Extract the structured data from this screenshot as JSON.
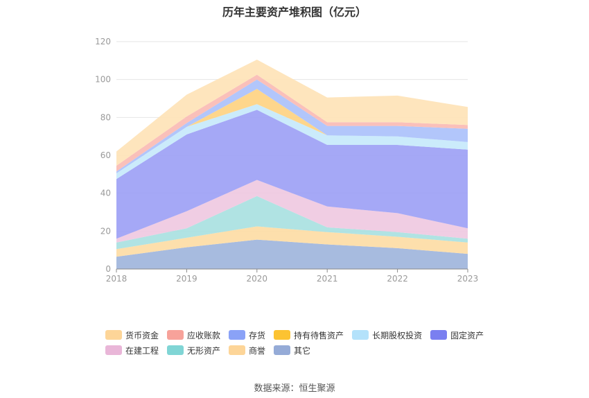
{
  "title": "历年主要资产堆积图（亿元）",
  "source": "数据来源：恒生聚源",
  "chart_data": {
    "type": "area",
    "stacked": true,
    "title": "历年主要资产堆积图（亿元）",
    "categories": [
      "2018",
      "2019",
      "2020",
      "2021",
      "2022",
      "2023"
    ],
    "ylim": [
      0,
      120
    ],
    "yticks": [
      "0",
      "20",
      "40",
      "60",
      "80",
      "100",
      "120"
    ],
    "grid": true,
    "legend_position": "bottom",
    "series": [
      {
        "name": "其它",
        "color": "#9db4dc",
        "values": [
          6.5,
          11.5,
          15.5,
          13,
          11,
          8
        ]
      },
      {
        "name": "商誉",
        "color": "#fddba3",
        "values": [
          4,
          5,
          7,
          6.5,
          6,
          6
        ]
      },
      {
        "name": "无形资产",
        "color": "#a7e0e0",
        "values": [
          3.5,
          5,
          16,
          2.5,
          2.5,
          2
        ]
      },
      {
        "name": "在建工程",
        "color": "#eec8e0",
        "values": [
          2,
          9,
          8.5,
          11,
          10,
          5.5
        ]
      },
      {
        "name": "固定资产",
        "color": "#9b9ff5",
        "values": [
          31.5,
          40.5,
          37,
          32.5,
          36,
          41.5
        ]
      },
      {
        "name": "长期股权投资",
        "color": "#c5e9fb",
        "values": [
          3,
          4,
          3,
          5,
          4.5,
          4
        ]
      },
      {
        "name": "持有待售资产",
        "color": "#fed27f",
        "values": [
          0,
          0,
          8,
          0,
          0,
          0
        ]
      },
      {
        "name": "存货",
        "color": "#aac0fb",
        "values": [
          1,
          2,
          5,
          5,
          5.5,
          7
        ]
      },
      {
        "name": "应收账款",
        "color": "#f9b9b2",
        "values": [
          3,
          3.5,
          2.5,
          2,
          2,
          2
        ]
      },
      {
        "name": "货币资金",
        "color": "#fee2b6",
        "values": [
          7.5,
          11.5,
          8,
          13,
          14,
          9.5
        ]
      }
    ],
    "legend_order": [
      "货币资金",
      "应收账款",
      "存货",
      "持有待售资产",
      "长期股权投资",
      "固定资产",
      "在建工程",
      "无形资产",
      "商誉",
      "其它"
    ],
    "legend_colors": {
      "货币资金": "#fdd598",
      "应收账款": "#f7a29a",
      "存货": "#8aa2f7",
      "持有待售资产": "#fcc332",
      "长期股权投资": "#b4e2fb",
      "固定资产": "#7a7ff0",
      "在建工程": "#e9b6d8",
      "无形资产": "#80d5d5",
      "商誉": "#fdd598",
      "其它": "#95abd7"
    }
  }
}
